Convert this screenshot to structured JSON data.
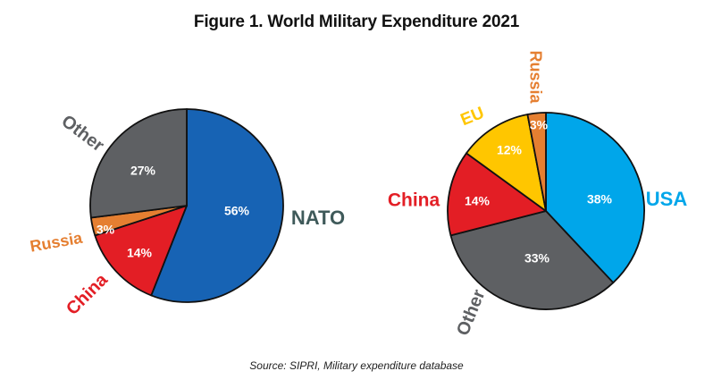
{
  "title": "Figure 1. World Military Expenditure 2021",
  "source": "Source: SIPRI, Military expenditure database",
  "chart_data": [
    {
      "type": "pie",
      "name": "alliances",
      "slices": [
        {
          "label": "NATO",
          "value": 56,
          "display": "56%",
          "color": "#1763b4",
          "label_color": "#3f5a5a"
        },
        {
          "label": "China",
          "value": 14,
          "display": "14%",
          "color": "#e31e25",
          "label_color": "#e31e25"
        },
        {
          "label": "Russia",
          "value": 3,
          "display": "3%",
          "color": "#e57f31",
          "label_color": "#e57f31"
        },
        {
          "label": "Other",
          "value": 27,
          "display": "27%",
          "color": "#5e6063",
          "label_color": "#5e6063"
        }
      ]
    },
    {
      "type": "pie",
      "name": "countries",
      "slices": [
        {
          "label": "USA",
          "value": 38,
          "display": "38%",
          "color": "#00a6ea",
          "label_color": "#00a6ea"
        },
        {
          "label": "Other",
          "value": 33,
          "display": "33%",
          "color": "#5e6063",
          "label_color": "#5e6063"
        },
        {
          "label": "China",
          "value": 14,
          "display": "14%",
          "color": "#e31e25",
          "label_color": "#e31e25"
        },
        {
          "label": "EU",
          "value": 12,
          "display": "12%",
          "color": "#ffc600",
          "label_color": "#ffc600"
        },
        {
          "label": "Russia",
          "value": 3,
          "display": "3%",
          "color": "#e57f31",
          "label_color": "#e57f31"
        }
      ]
    }
  ]
}
